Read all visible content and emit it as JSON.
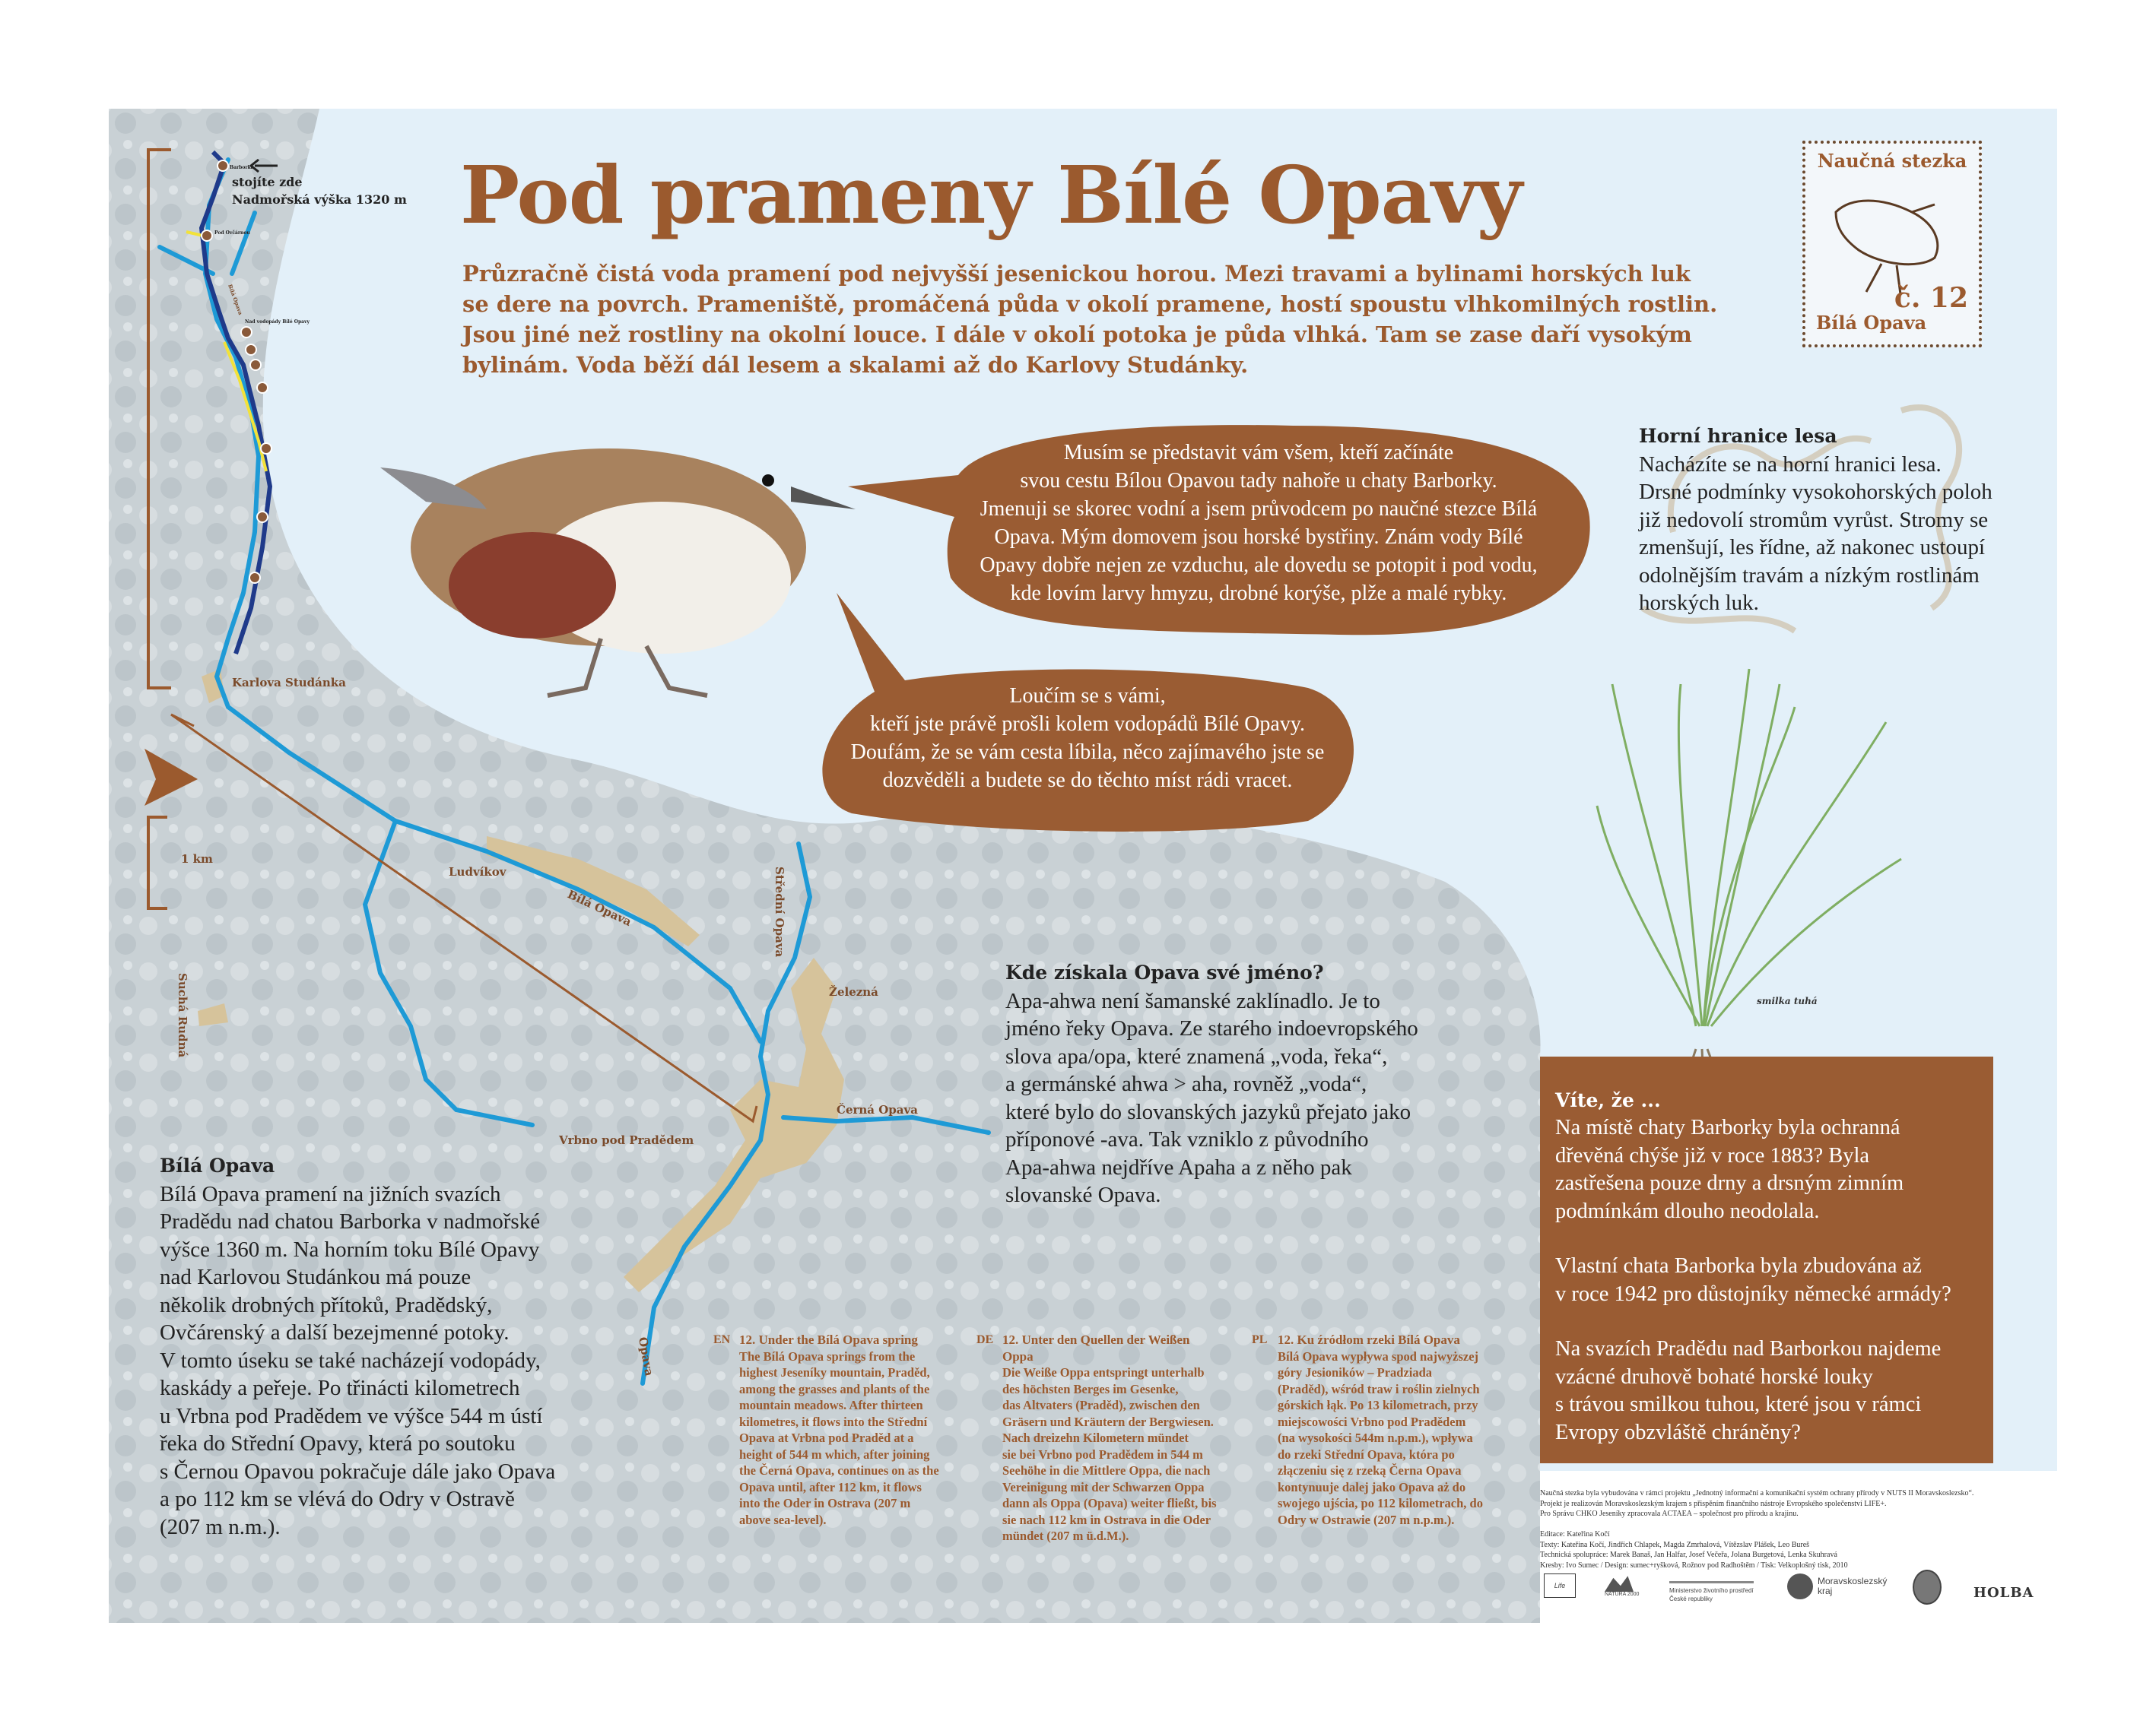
{
  "title": "Pod prameny Bílé Opavy",
  "intro": [
    "Průzračně čistá voda pramení pod nejvyšší jesenickou horou. Mezi travami a bylinami horských luk",
    "se dere na povrch. Prameniště, promáčená půda v okolí pramene, hostí spoustu vlhkomilných rostlin.",
    "Jsou jiné než rostliny na okolní louce. I dále v okolí potoka je půda vlhká. Tam se zase daří vysokým",
    "bylinám. Voda běží dál lesem a skalami až do Karlovy Studánky."
  ],
  "stamp": {
    "title": "Naučná stezka",
    "number": "č. 12",
    "name": "Bílá Opava"
  },
  "bubble1": [
    "Musím se představit vám všem, kteří začínáte",
    "svou cestu Bílou Opavou tady nahoře u chaty Barborky.",
    "Jmenuji se skorec vodní a jsem průvodcem po naučné stezce Bílá",
    "Opava. Mým domovem jsou horské bystřiny. Znám vody Bílé",
    "Opavy dobře nejen ze vzduchu, ale dovedu se potopit i pod vodu,",
    "kde lovím larvy hmyzu, drobné korýše, plže a malé rybky."
  ],
  "bubble2": [
    "Loučím se s vámi,",
    "kteří jste právě prošli kolem vodopádů Bílé Opavy.",
    "Doufám, že se vám cesta líbila, něco zajímavého jste se",
    "dozvěděli a budete se do těchto míst rádi vracet."
  ],
  "forest": {
    "heading": "Horní hranice lesa",
    "lines": [
      "Nacházíte se na horní hranici lesa.",
      "Drsné podmínky vysokohorských poloh",
      "již nedovolí stromům vyrůst. Stromy se",
      "zmenšují, les řídne, až nakonec ustoupí",
      "odolnějším travám a nízkým rostlinám",
      "horských luk."
    ]
  },
  "grass_caption": "smilka tuhá",
  "name_origin": {
    "heading": "Kde získala Opava své jméno?",
    "lines": [
      "Apa-ahwa není šamanské zaklínadlo. Je to",
      "jméno řeky Opava. Ze starého indoevropského",
      "slova apa/opa, které znamená „voda, řeka“,",
      "a germánské ahwa > aha, rovněž „voda“,",
      "které bylo do slovanských jazyků přejato jako",
      "příponové -ava. Tak vzniklo z původního",
      "Apa-ahwa nejdříve Apaha a z něho pak",
      "slovanské Opava."
    ]
  },
  "bila_opava": {
    "heading": "Bílá Opava",
    "lines": [
      "Bílá Opava pramení na jižních svazích",
      "Pradědu nad chatou Barborka v nadmořské",
      "výšce 1360 m. Na horním toku Bílé Opavy",
      "nad Karlovou Studánkou má pouze",
      "několik drobných přítoků, Pradědský,",
      "Ovčárenský a další bezejmenné potoky.",
      "V tomto úseku se také nacházejí vodopády,",
      "kaskády a peřeje. Po třinácti kilometrech",
      "u Vrbna pod Pradědem ve výšce 544 m ústí",
      "řeka do Střední Opavy, která po soutoku",
      "s Černou Opavou pokračuje dále jako Opava",
      "a po 112 km se vlévá do Odry v Ostravě",
      "(207 m n.m.)."
    ]
  },
  "vite": {
    "heading": "Víte, že ...",
    "paragraphs": [
      [
        "Na místě chaty Barborky byla ochranná",
        "dřevěná chýše již v roce 1883? Byla",
        "zastřešena pouze drny a drsným zimním",
        "podmínkám dlouho neodolala."
      ],
      [
        "Vlastní chata Barborka byla zbudována až",
        "v roce 1942 pro důstojníky německé armády?"
      ],
      [
        "Na svazích Pradědu nad Barborkou najdeme",
        "vzácné druhově bohaté horské louky",
        "s trávou smilkou tuhou, které jsou v rámci",
        "Evropy obzvláště chráněny?"
      ]
    ]
  },
  "translations": [
    {
      "code": "EN",
      "title": "12. Under the Bílá Opava spring",
      "lines": [
        "The Bílá Opava springs from the",
        "highest Jeseníky mountain, Praděd,",
        "among the grasses and plants of the",
        "mountain meadows. After thirteen",
        "kilometres, it flows into the Střední",
        "Opava at Vrbna pod Praděd at a",
        "height of 544 m which, after joining",
        "the Černá Opava, continues on as the",
        "Opava until, after 112 km, it flows",
        "into the Oder in Ostrava (207 m",
        "above sea-level)."
      ]
    },
    {
      "code": "DE",
      "title": "12. Unter den Quellen der Weißen",
      "title2": "Oppa",
      "lines": [
        "Die Weiße Oppa entspringt unterhalb",
        "des höchsten Berges im Gesenke,",
        "das Altvaters (Praděd), zwischen den",
        "Gräsern und Kräutern der Bergwiesen.",
        "Nach dreizehn Kilometern mündet",
        "sie bei Vrbno pod Pradědem in 544 m",
        "Seehöhe in die Mittlere Oppa, die nach",
        "Vereinigung mit der Schwarzen Oppa",
        "dann als Oppa (Opava) weiter fließt, bis",
        "sie nach 112 km in Ostrava in die Oder",
        "mündet (207 m ü.d.M.)."
      ]
    },
    {
      "code": "PL",
      "title": "12. Ku źródłom rzeki Bílá Opava",
      "lines": [
        "Bílá Opava wypływa spod najwyższej",
        "góry Jesioników – Pradziada",
        "(Praděd), wśród traw i roślin zielnych",
        "górskich łąk. Po 13 kilometrach, przy",
        "miejscowości Vrbno pod Pradědem",
        "(na wysokości 544m n.p.m.), wpływa",
        "do rzeki Střední Opava, która po",
        "złączeniu się z rzeką Černa Opava",
        "kontynuuje dalej jako Opava aż do",
        "swojego ujścia, po 112 kilometrach, do",
        "Odry w Ostrawie (207 m n.p.m.)."
      ]
    }
  ],
  "credits": [
    "Naučná stezka byla vybudována v rámci projektu „Jednotný informační a komunikační systém ochrany přírody v NUTS II Moravskoslezsko“.",
    "Projekt je realizován Moravskoslezským krajem s přispěním finančního nástroje Evropského společenství LIFE+.",
    "Pro Správu CHKO Jeseníky zpracovala ACTAEA – společnost pro přírodu a krajinu.",
    "",
    "Editace: Kateřina Kočí",
    "Texty: Kateřina Kočí, Jindřich Chlapek, Magda Zmrhalová, Vítězslav Plášek, Leo Bureš",
    "Technická spolupráce: Marek Banaš, Jan Halfar, Josef Večeřa, Jolana Burgetová, Lenka Skuhravá",
    "Kresby: Ivo Sumec / Design: sumec+ryšková, Rožnov pod Radhoštěm / Tisk: Velkoplošný tisk, 2010"
  ],
  "logos": {
    "life": "Life",
    "natura": "NATURA 2000",
    "ministry": [
      "Ministerstvo životního prostředí",
      "České republiky"
    ],
    "region": [
      "Moravskoslezský",
      "kraj"
    ],
    "holba": "HOLBA"
  },
  "map": {
    "you_are_here": "stojíte zde",
    "altitude": "Nadmořská výška 1320 m",
    "stops": [
      "Barborka",
      "Pod Ovčárnou",
      "Nad vodopády Bílé Opavy"
    ],
    "stop_numbers": [
      "13",
      "11",
      "10",
      "9",
      "8",
      "7"
    ],
    "places": {
      "karlova": "Karlova Studánka",
      "ludvikov": "Ludvíkov",
      "bila": "Bílá Opava",
      "bila_upper": "Bílá Opava",
      "stredni": "Střední Opava",
      "zelezna": "Železná",
      "cerna": "Černá Opava",
      "vrbno": "Vrbno pod Pradědem",
      "sucha": "Suchá Rudná",
      "opava": "Opava"
    },
    "scale": "1 km",
    "colors": {
      "river": "#1e9ad6",
      "trail": "#1f3a8a",
      "path": "#f2e23a",
      "town": "#d6c39b",
      "accent": "#9b5a2e"
    }
  }
}
